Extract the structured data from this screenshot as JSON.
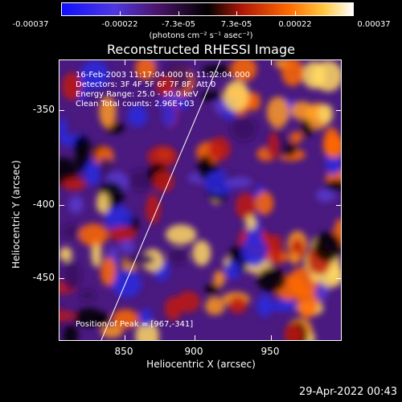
{
  "colorbar": {
    "tick_labels": [
      "-0.00037",
      "-0.00022",
      "-7.3e-05",
      "7.3e-05",
      "0.00022",
      "0.00037"
    ],
    "unit_label": "(photons cm⁻² s⁻¹ asec⁻²)",
    "colors": [
      "#1010ff",
      "#6040d0",
      "#4a1060",
      "#000000",
      "#c02010",
      "#ff6a00",
      "#ffd040",
      "#ffffff"
    ]
  },
  "title": "Reconstructed RHESSI Image",
  "info": {
    "line1": "16-Feb-2003 11:17:04.000 to 11:22:04.000",
    "line2": "Detectors: 3F 4F 5F 6F 7F 8F, Att 0",
    "line3": "Energy Range: 25.0 - 50.0 keV",
    "line4": "Clean     Total counts: 2.96E+03",
    "peak": "Position of Peak = [967,-341]"
  },
  "axes": {
    "ylabel": "Heliocentric Y (arcsec)",
    "xlabel": "Heliocentric X (arcsec)",
    "yticks": [
      "-350",
      "-400",
      "-450"
    ],
    "xticks": [
      "850",
      "900",
      "950"
    ]
  },
  "footer": {
    "date": "29-Apr-2022 00:43"
  }
}
